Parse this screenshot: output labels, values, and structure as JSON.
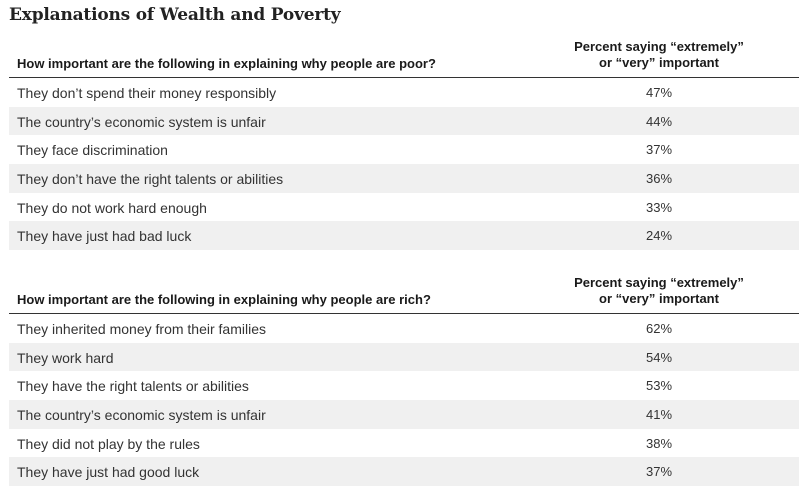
{
  "title": "Explanations of Wealth and Poverty",
  "chart_data": [
    {
      "type": "table",
      "question": "How important are the following in explaining why people are poor?",
      "value_header_line1": "Percent saying “extremely”",
      "value_header_line2": "or “very” important",
      "rows": [
        {
          "label": "They don’t spend their money responsibly",
          "value": "47%"
        },
        {
          "label": "The country’s economic system is unfair",
          "value": "44%"
        },
        {
          "label": "They face discrimination",
          "value": "37%"
        },
        {
          "label": "They don’t have the right talents or abilities",
          "value": "36%"
        },
        {
          "label": "They do not work hard enough",
          "value": "33%"
        },
        {
          "label": "They have just had bad luck",
          "value": "24%"
        }
      ]
    },
    {
      "type": "table",
      "question": "How important are the following in explaining why people are rich?",
      "value_header_line1": "Percent saying “extremely”",
      "value_header_line2": "or “very” important",
      "rows": [
        {
          "label": "They inherited money from their families",
          "value": "62%"
        },
        {
          "label": "They work hard",
          "value": "54%"
        },
        {
          "label": "They have the right talents or abilities",
          "value": "53%"
        },
        {
          "label": "The country’s economic system is unfair",
          "value": "41%"
        },
        {
          "label": "They did not play by the rules",
          "value": "38%"
        },
        {
          "label": "They have just had good luck",
          "value": "37%"
        }
      ]
    }
  ]
}
